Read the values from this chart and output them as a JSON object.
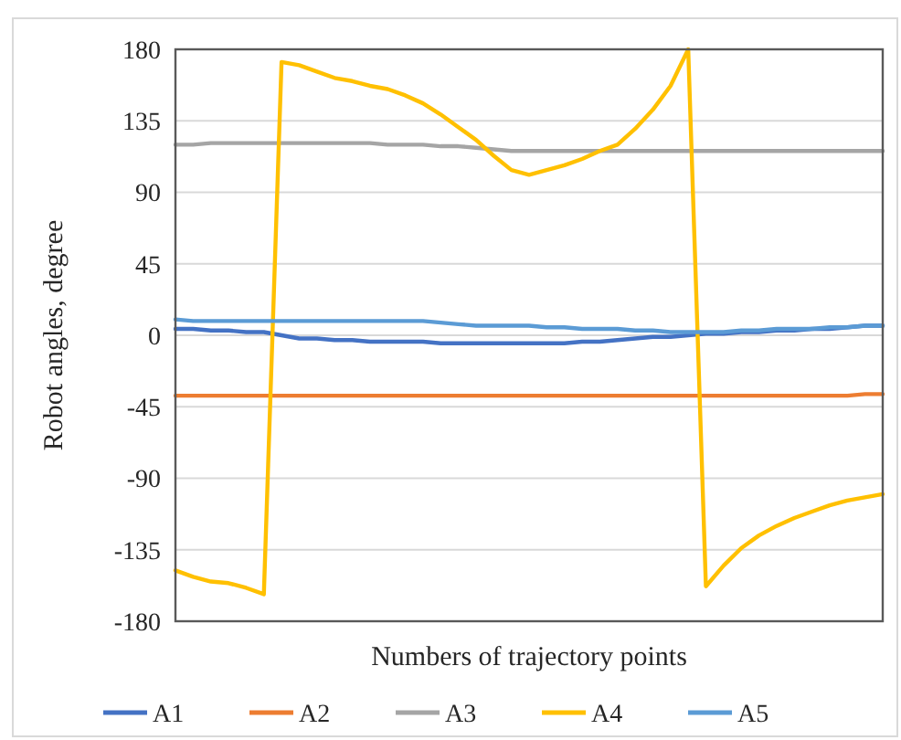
{
  "chart_data": {
    "type": "line",
    "xlabel": "Numbers of trajectory points",
    "ylabel": "Robot angles, degree",
    "categories": [
      null,
      null,
      null,
      null,
      null,
      null,
      null,
      null,
      null,
      null,
      null,
      null,
      null,
      null,
      null,
      null,
      null,
      null,
      null,
      null,
      null,
      null,
      null,
      null,
      null,
      null,
      null,
      null,
      null,
      null,
      null,
      null,
      null,
      null,
      null,
      null,
      null,
      null,
      null,
      null,
      null
    ],
    "ylim": [
      -180,
      180
    ],
    "yticks": [
      -180,
      -135,
      -90,
      -45,
      0,
      45,
      90,
      135,
      180
    ],
    "grid": "y",
    "legend": "bottom",
    "marker": "none",
    "line_style": "solid",
    "series": [
      {
        "name": "A1",
        "color": "#4472c4",
        "values": [
          4,
          4,
          3,
          3,
          2,
          2,
          0,
          -2,
          -2,
          -3,
          -3,
          -4,
          -4,
          -4,
          -4,
          -5,
          -5,
          -5,
          -5,
          -5,
          -5,
          -5,
          -5,
          -4,
          -4,
          -3,
          -2,
          -1,
          -1,
          0,
          1,
          1,
          2,
          2,
          3,
          3,
          4,
          4,
          5,
          6,
          6
        ]
      },
      {
        "name": "A2",
        "color": "#ed7d31",
        "values": [
          -38,
          -38,
          -38,
          -38,
          -38,
          -38,
          -38,
          -38,
          -38,
          -38,
          -38,
          -38,
          -38,
          -38,
          -38,
          -38,
          -38,
          -38,
          -38,
          -38,
          -38,
          -38,
          -38,
          -38,
          -38,
          -38,
          -38,
          -38,
          -38,
          -38,
          -38,
          -38,
          -38,
          -38,
          -38,
          -38,
          -38,
          -38,
          -38,
          -37,
          -37
        ]
      },
      {
        "name": "A3",
        "color": "#a5a5a5",
        "values": [
          120,
          120,
          121,
          121,
          121,
          121,
          121,
          121,
          121,
          121,
          121,
          121,
          120,
          120,
          120,
          119,
          119,
          118,
          117,
          116,
          116,
          116,
          116,
          116,
          116,
          116,
          116,
          116,
          116,
          116,
          116,
          116,
          116,
          116,
          116,
          116,
          116,
          116,
          116,
          116,
          116
        ]
      },
      {
        "name": "A4",
        "color": "#ffc000",
        "values": [
          -148,
          -152,
          -155,
          -156,
          -159,
          -163,
          172,
          170,
          166,
          162,
          160,
          157,
          155,
          151,
          146,
          139,
          131,
          123,
          113,
          104,
          101,
          104,
          107,
          111,
          116,
          120,
          130,
          142,
          157,
          180,
          -158,
          -145,
          -134,
          -126,
          -120,
          -115,
          -111,
          -107,
          -104,
          -102,
          -100
        ]
      },
      {
        "name": "A5",
        "color": "#5b9bd5",
        "values": [
          10,
          9,
          9,
          9,
          9,
          9,
          9,
          9,
          9,
          9,
          9,
          9,
          9,
          9,
          9,
          8,
          7,
          6,
          6,
          6,
          6,
          5,
          5,
          4,
          4,
          4,
          3,
          3,
          2,
          2,
          2,
          2,
          3,
          3,
          4,
          4,
          4,
          5,
          5,
          6,
          6
        ]
      }
    ]
  }
}
